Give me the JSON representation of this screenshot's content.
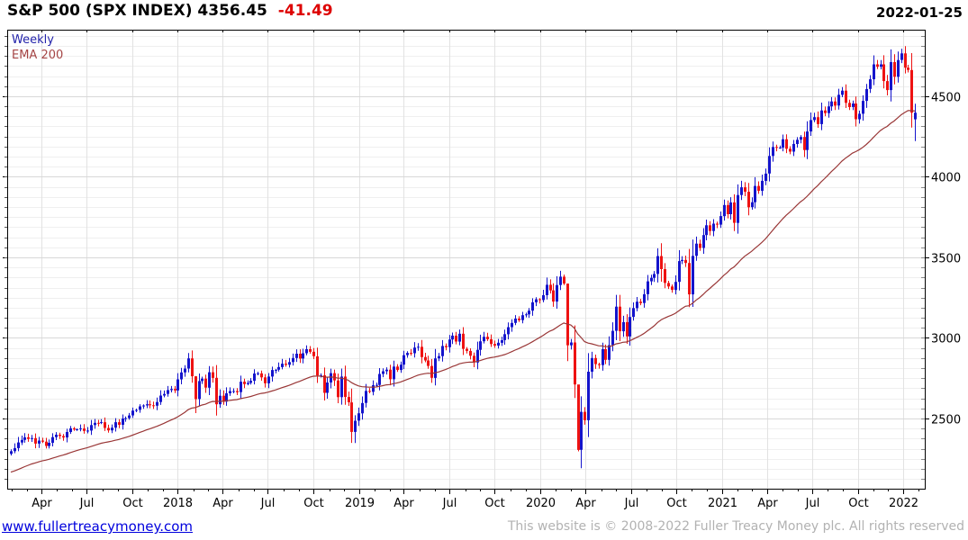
{
  "header": {
    "title": "S&P 500 (SPX INDEX) 4356.45",
    "change": "-41.49",
    "date": "2022-01-25"
  },
  "legend": {
    "timeframe": "Weekly",
    "indicator": "EMA 200"
  },
  "footer": {
    "site": "www.fullertreacymoney.com",
    "copyright": "This website is © 2008-2022 Fuller Treacy Money plc. All rights reserved"
  },
  "colors": {
    "title": "#000000",
    "change": "#dd0000",
    "legend_timeframe": "#2222aa",
    "legend_indicator": "#a54545",
    "up_candle": "#1414cc",
    "down_candle": "#ee1212",
    "ema_line": "#993636",
    "grid_minor": "#efefef",
    "grid_major": "#d8d8d8",
    "grid_vertical": "#e2e2e2",
    "axis": "#000000",
    "axis_text": "#000000",
    "footer_link": "#0000dd",
    "footer_copy": "#b2b2b2"
  },
  "chart_data": {
    "type": "candlestick",
    "title": "S&P 500 (SPX INDEX)",
    "timeframe": "weekly",
    "last_price": 4356.45,
    "change": -41.49,
    "as_of": "2022-01-25",
    "ylim": [
      2064,
      4913
    ],
    "y_ticks": [
      2500,
      3000,
      3500,
      4000,
      4500
    ],
    "y_minor_step": 62.5,
    "grid": true,
    "legend_position": "top-left",
    "x_labels": [
      {
        "text": "Apr",
        "week": 8.7
      },
      {
        "text": "Jul",
        "week": 21.7
      },
      {
        "text": "Oct",
        "week": 34.9
      },
      {
        "text": "2018",
        "week": 48.0
      },
      {
        "text": "Apr",
        "week": 60.9
      },
      {
        "text": "Jul",
        "week": 73.9
      },
      {
        "text": "Oct",
        "week": 87.0
      },
      {
        "text": "2019",
        "week": 100.1
      },
      {
        "text": "Apr",
        "week": 113.0
      },
      {
        "text": "Jul",
        "week": 126.0
      },
      {
        "text": "Oct",
        "week": 139.1
      },
      {
        "text": "2020",
        "week": 152.3
      },
      {
        "text": "Apr",
        "week": 165.3
      },
      {
        "text": "Jul",
        "week": 178.3
      },
      {
        "text": "Oct",
        "week": 191.4
      },
      {
        "text": "2021",
        "week": 204.6
      },
      {
        "text": "Apr",
        "week": 217.4
      },
      {
        "text": "Jul",
        "week": 230.4
      },
      {
        "text": "Oct",
        "week": 243.6
      },
      {
        "text": "2022",
        "week": 256.7
      }
    ],
    "first_open": 2280,
    "weekly_closes": [
      2297,
      2316,
      2351,
      2367,
      2383,
      2373,
      2378,
      2344,
      2363,
      2356,
      2329,
      2349,
      2384,
      2399,
      2391,
      2382,
      2416,
      2439,
      2432,
      2433,
      2438,
      2423,
      2425,
      2459,
      2473,
      2472,
      2477,
      2441,
      2426,
      2443,
      2477,
      2461,
      2500,
      2502,
      2519,
      2549,
      2553,
      2575,
      2581,
      2588,
      2582,
      2579,
      2602,
      2642,
      2652,
      2676,
      2683,
      2674,
      2743,
      2786,
      2810,
      2873,
      2762,
      2620,
      2732,
      2747,
      2691,
      2787,
      2752,
      2588,
      2641,
      2604,
      2656,
      2670,
      2670,
      2663,
      2728,
      2713,
      2721,
      2734,
      2779,
      2780,
      2755,
      2718,
      2760,
      2801,
      2802,
      2819,
      2840,
      2833,
      2850,
      2875,
      2902,
      2872,
      2905,
      2930,
      2914,
      2886,
      2767,
      2768,
      2659,
      2723,
      2781,
      2736,
      2632,
      2760,
      2633,
      2600,
      2417,
      2486,
      2532,
      2596,
      2671,
      2665,
      2707,
      2708,
      2776,
      2793,
      2803,
      2743,
      2822,
      2801,
      2834,
      2893,
      2907,
      2905,
      2940,
      2945,
      2881,
      2860,
      2826,
      2752,
      2873,
      2887,
      2950,
      2942,
      2990,
      3014,
      2977,
      3026,
      2932,
      2919,
      2889,
      2847,
      2926,
      2979,
      3007,
      2992,
      2962,
      2952,
      2970,
      2986,
      3023,
      3067,
      3093,
      3120,
      3110,
      3141,
      3146,
      3169,
      3221,
      3240,
      3235,
      3265,
      3330,
      3295,
      3225,
      3328,
      3380,
      3337,
      2954,
      2972,
      2711,
      2305,
      2541,
      2489,
      2790,
      2875,
      2837,
      2831,
      2930,
      2864,
      2955,
      3044,
      3194,
      3041,
      3098,
      3009,
      3130,
      3185,
      3225,
      3216,
      3271,
      3351,
      3373,
      3397,
      3508,
      3427,
      3341,
      3319,
      3298,
      3348,
      3477,
      3484,
      3465,
      3270,
      3509,
      3585,
      3558,
      3638,
      3699,
      3663,
      3709,
      3703,
      3756,
      3825,
      3768,
      3841,
      3714,
      3887,
      3935,
      3907,
      3811,
      3842,
      3943,
      3913,
      3975,
      4020,
      4129,
      4185,
      4180,
      4181,
      4233,
      4174,
      4156,
      4204,
      4230,
      4247,
      4166,
      4281,
      4352,
      4370,
      4327,
      4412,
      4395,
      4437,
      4468,
      4442,
      4509,
      4535,
      4459,
      4433,
      4455,
      4357,
      4391,
      4471,
      4545,
      4605,
      4698,
      4683,
      4698,
      4594,
      4538,
      4712,
      4621,
      4725,
      4766,
      4677,
      4663,
      4398,
      4356.45
    ],
    "wick_overrides": {
      "53": [
        2763,
        2533
      ],
      "99": [
        2520,
        2347
      ],
      "159": [
        3393,
        3328
      ],
      "160": [
        3337,
        2856
      ],
      "163": [
        2425,
        2296
      ],
      "164": [
        2637,
        2191
      ],
      "187": [
        3588,
        3349
      ],
      "260": [
        4453,
        4222
      ]
    },
    "color_overrides": {
      "260": "up"
    },
    "ema": {
      "label": "EMA 200",
      "period_weeks": 40,
      "seed": 2160
    }
  }
}
